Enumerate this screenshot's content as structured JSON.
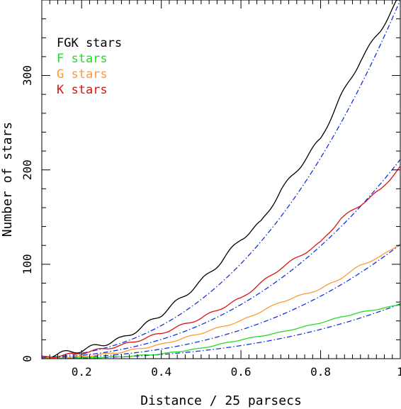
{
  "chart_data": {
    "type": "line",
    "xlabel": "Distance / 25 parsecs",
    "ylabel": "Number of stars",
    "xlim": [
      0.1,
      1.0
    ],
    "ylim": [
      0,
      380
    ],
    "x_ticks": [
      0.2,
      0.4,
      0.6,
      0.8,
      1.0
    ],
    "x_tick_labels": [
      "0.2",
      "0.4",
      "0.6",
      "0.8",
      "1"
    ],
    "y_ticks": [
      0,
      100,
      200,
      300
    ],
    "y_tick_labels": [
      "0",
      "100",
      "200",
      "300"
    ],
    "grid": false,
    "legend_position": "top-left",
    "series": [
      {
        "name": "FGK stars",
        "color": "#000000",
        "style": "solid",
        "points": [
          [
            0.1,
            2
          ],
          [
            0.14,
            5
          ],
          [
            0.2,
            9
          ],
          [
            0.25,
            15
          ],
          [
            0.3,
            21
          ],
          [
            0.35,
            33
          ],
          [
            0.4,
            47
          ],
          [
            0.45,
            64
          ],
          [
            0.5,
            82
          ],
          [
            0.55,
            103
          ],
          [
            0.6,
            127
          ],
          [
            0.65,
            144
          ],
          [
            0.7,
            178
          ],
          [
            0.75,
            205
          ],
          [
            0.8,
            233
          ],
          [
            0.85,
            277
          ],
          [
            0.9,
            316
          ],
          [
            0.95,
            348
          ],
          [
            1.0,
            385
          ]
        ]
      },
      {
        "name": "F stars",
        "color": "#22dd22",
        "style": "solid",
        "points": [
          [
            0.1,
            0
          ],
          [
            0.2,
            1
          ],
          [
            0.3,
            2
          ],
          [
            0.4,
            5
          ],
          [
            0.5,
            11
          ],
          [
            0.6,
            20
          ],
          [
            0.7,
            28
          ],
          [
            0.8,
            38
          ],
          [
            0.85,
            44
          ],
          [
            0.9,
            49
          ],
          [
            0.95,
            53
          ],
          [
            1.0,
            57
          ]
        ]
      },
      {
        "name": "G stars",
        "color": "#ff9933",
        "style": "solid",
        "points": [
          [
            0.1,
            0
          ],
          [
            0.2,
            2
          ],
          [
            0.3,
            7
          ],
          [
            0.4,
            15
          ],
          [
            0.5,
            27
          ],
          [
            0.6,
            40
          ],
          [
            0.7,
            60
          ],
          [
            0.8,
            74
          ],
          [
            0.85,
            85
          ],
          [
            0.9,
            99
          ],
          [
            0.95,
            108
          ],
          [
            1.0,
            122
          ]
        ]
      },
      {
        "name": "K stars",
        "color": "#dd1111",
        "style": "solid",
        "points": [
          [
            0.1,
            1
          ],
          [
            0.2,
            6
          ],
          [
            0.3,
            14
          ],
          [
            0.4,
            27
          ],
          [
            0.5,
            43
          ],
          [
            0.6,
            64
          ],
          [
            0.7,
            96
          ],
          [
            0.8,
            123
          ],
          [
            0.85,
            148
          ],
          [
            0.9,
            163
          ],
          [
            0.95,
            179
          ],
          [
            1.0,
            203
          ]
        ]
      }
    ],
    "fit_curves": {
      "color": "#1133dd",
      "style": "dash-dot",
      "endpoints_at_x1": [
        380,
        211,
        121,
        58
      ]
    },
    "legend": [
      {
        "label": "FGK stars",
        "color": "#000000"
      },
      {
        "label": "F stars",
        "color": "#22dd22"
      },
      {
        "label": "G stars",
        "color": "#ff9933"
      },
      {
        "label": "K stars",
        "color": "#dd1111"
      }
    ]
  }
}
